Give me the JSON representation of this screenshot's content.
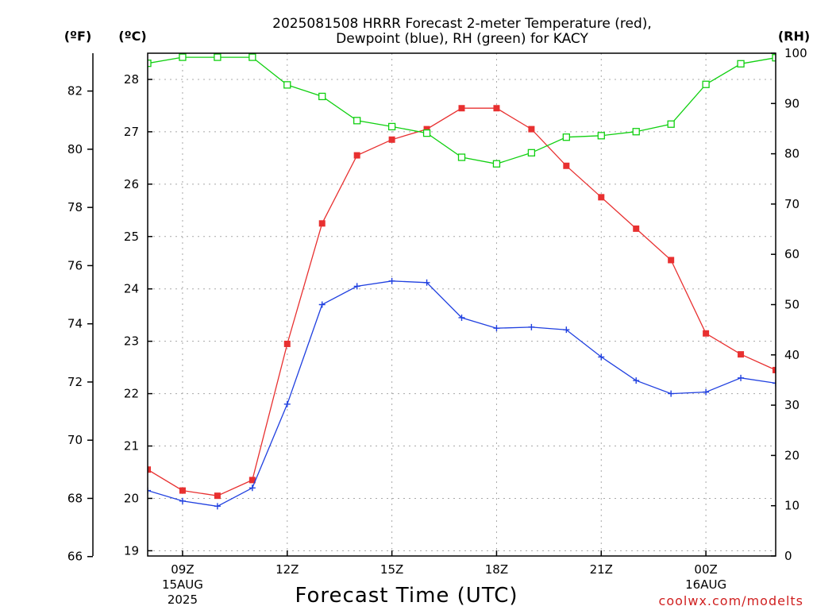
{
  "title_line1": "2025081508 HRRR Forecast 2-meter Temperature (red),",
  "title_line2": "Dewpoint (blue), RH (green) for KACY",
  "units": {
    "fahrenheit": "(ºF)",
    "celsius": "(ºC)",
    "rh": "(RH)"
  },
  "xlabel": "Forecast Time (UTC)",
  "credit": "coolwx.com/modelts",
  "chart_data": {
    "type": "line",
    "title": "2025081508 HRRR Forecast 2-meter Temperature (red), Dewpoint (blue), RH (green) for KACY",
    "xlabel": "Forecast Time (UTC)",
    "x": [
      "08Z",
      "09Z",
      "10Z",
      "11Z",
      "12Z",
      "13Z",
      "14Z",
      "15Z",
      "16Z",
      "17Z",
      "18Z",
      "19Z",
      "20Z",
      "21Z",
      "22Z",
      "23Z",
      "00Z",
      "01Z",
      "02Z"
    ],
    "x_tick_labels": [
      {
        "hour": "09Z",
        "day": "15AUG",
        "year": "2025"
      },
      {
        "hour": "12Z",
        "day": "",
        "year": ""
      },
      {
        "hour": "15Z",
        "day": "",
        "year": ""
      },
      {
        "hour": "18Z",
        "day": "",
        "year": ""
      },
      {
        "hour": "21Z",
        "day": "",
        "year": ""
      },
      {
        "hour": "00Z",
        "day": "16AUG",
        "year": ""
      }
    ],
    "x_tick_index": [
      1,
      4,
      7,
      10,
      13,
      16
    ],
    "y_left_celsius": {
      "ticks": [
        19,
        20,
        21,
        22,
        23,
        24,
        25,
        26,
        27,
        28
      ],
      "range": [
        18.9,
        28.5
      ]
    },
    "y_left_fahrenheit": {
      "ticks": [
        66,
        68,
        70,
        72,
        74,
        76,
        78,
        80,
        82
      ]
    },
    "y_right_rh": {
      "ticks": [
        0,
        10,
        20,
        30,
        40,
        50,
        60,
        70,
        80,
        90,
        100
      ],
      "range": [
        0,
        100
      ]
    },
    "grid": true,
    "series": [
      {
        "name": "Temperature",
        "color": "#e83030",
        "marker": "filled-square",
        "axis": "celsius",
        "values": [
          20.55,
          20.15,
          20.05,
          20.35,
          22.95,
          25.25,
          26.55,
          26.85,
          27.05,
          27.45,
          27.45,
          27.05,
          26.35,
          25.75,
          25.15,
          24.55,
          23.15,
          22.75,
          22.45
        ]
      },
      {
        "name": "Dewpoint",
        "color": "#2040e0",
        "marker": "plus",
        "axis": "celsius",
        "values": [
          20.15,
          19.95,
          19.85,
          20.2,
          21.8,
          23.7,
          24.05,
          24.15,
          24.12,
          23.45,
          23.25,
          23.27,
          23.22,
          22.7,
          22.25,
          22.0,
          22.03,
          22.3,
          22.2
        ]
      },
      {
        "name": "RH",
        "color": "#10d010",
        "marker": "open-square",
        "axis": "rh",
        "values": [
          98,
          99.2,
          99.2,
          99.2,
          93.7,
          91.4,
          86.6,
          85.4,
          84.1,
          79.3,
          78.0,
          80.2,
          83.3,
          83.6,
          84.4,
          85.9,
          93.8,
          97.9,
          99.1
        ]
      }
    ]
  }
}
